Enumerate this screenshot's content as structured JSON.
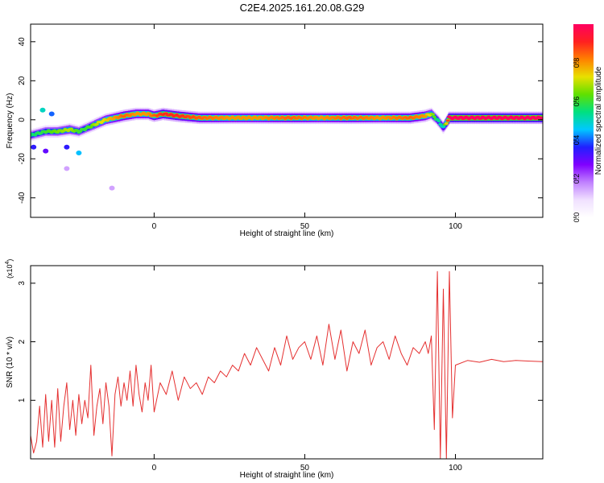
{
  "page": {
    "title": "C2E4.2025.161.20.08.G29"
  },
  "colors": {
    "frame": "#000000",
    "snr_line": "#e53030",
    "colormap_stops": [
      "#ffffff",
      "#f0e0ff",
      "#c080ff",
      "#8000ff",
      "#2020ff",
      "#00c8ff",
      "#00e080",
      "#60e000",
      "#e8e000",
      "#ff8000",
      "#ff2020",
      "#ff0060"
    ]
  },
  "chart_data": [
    {
      "type": "heatmap",
      "title": "",
      "xlabel": "Height of straight line (km)",
      "ylabel": "Frequency (Hz)",
      "xlim": [
        -41,
        129
      ],
      "ylim": [
        -50,
        49
      ],
      "x_ticks": [
        0,
        50,
        100
      ],
      "y_ticks": [
        -40,
        -20,
        0,
        20,
        40
      ],
      "colorbar": {
        "label": "Normalized spectral amplitude",
        "range": [
          0,
          1
        ],
        "ticks": [
          {
            "value": 0.0,
            "label": "0.0"
          },
          {
            "value": 0.2,
            "label": "0.2"
          },
          {
            "value": 0.4,
            "label": "0.4"
          },
          {
            "value": 0.6,
            "label": "0.6"
          },
          {
            "value": 0.8,
            "label": "0.8"
          }
        ]
      },
      "ridge": {
        "x": [
          -41,
          -36,
          -32,
          -28,
          -25,
          -22,
          -19,
          -16,
          -13,
          -10,
          -6,
          -2,
          0,
          3,
          8,
          15,
          25,
          35,
          45,
          55,
          65,
          75,
          85,
          90,
          92,
          94,
          96,
          98,
          105,
          115,
          129
        ],
        "freq": [
          -8,
          -6,
          -6,
          -5,
          -6,
          -4,
          -2,
          0,
          1,
          2,
          3,
          3,
          2,
          3,
          2,
          1,
          1,
          1,
          1,
          1,
          1,
          1,
          1,
          2,
          3,
          0,
          -4,
          1,
          1,
          1,
          1
        ],
        "amplitude": [
          0.55,
          0.6,
          0.65,
          0.7,
          0.6,
          0.6,
          0.7,
          0.75,
          0.8,
          0.85,
          0.8,
          0.8,
          0.85,
          0.9,
          0.9,
          0.85,
          0.8,
          0.8,
          0.85,
          0.8,
          0.85,
          0.8,
          0.85,
          0.8,
          0.7,
          0.55,
          0.5,
          1.0,
          1.0,
          1.0,
          1.0
        ]
      },
      "outliers": [
        {
          "x": -37,
          "freq": 5,
          "amplitude": 0.5
        },
        {
          "x": -34,
          "freq": 3,
          "amplitude": 0.4
        },
        {
          "x": -40,
          "freq": -14,
          "amplitude": 0.35
        },
        {
          "x": -36,
          "freq": -16,
          "amplitude": 0.3
        },
        {
          "x": -29,
          "freq": -14,
          "amplitude": 0.35
        },
        {
          "x": -25,
          "freq": -17,
          "amplitude": 0.45
        },
        {
          "x": -29,
          "freq": -25,
          "amplitude": 0.15
        },
        {
          "x": -14,
          "freq": -35,
          "amplitude": 0.15
        }
      ]
    },
    {
      "type": "line",
      "title": "",
      "xlabel": "Height of straight line (km)",
      "ylabel": "SNR (10 * v/v)",
      "multiplier": "(x10",
      "multiplier_exp": "4",
      "xlim": [
        -41,
        129
      ],
      "ylim": [
        0,
        3.3
      ],
      "x_ticks": [
        0,
        50,
        100
      ],
      "y_ticks": [
        1,
        2,
        3
      ],
      "series": [
        {
          "x": [
            -41,
            -40,
            -39,
            -38,
            -37,
            -36,
            -35,
            -34,
            -33,
            -32,
            -31,
            -30,
            -29,
            -28,
            -27,
            -26,
            -25,
            -24,
            -23,
            -22,
            -21,
            -20,
            -19,
            -18,
            -17,
            -16,
            -15,
            -14,
            -13,
            -12,
            -11,
            -10,
            -9,
            -8,
            -7,
            -6,
            -5,
            -4,
            -3,
            -2,
            -1,
            0,
            2,
            4,
            6,
            8,
            10,
            12,
            14,
            16,
            18,
            20,
            22,
            24,
            26,
            28,
            30,
            32,
            34,
            36,
            38,
            40,
            42,
            44,
            46,
            48,
            50,
            52,
            54,
            56,
            58,
            60,
            62,
            64,
            66,
            68,
            70,
            72,
            74,
            76,
            78,
            80,
            82,
            84,
            86,
            88,
            90,
            91,
            92,
            93,
            94,
            95,
            96,
            97,
            98,
            99,
            100,
            104,
            108,
            112,
            116,
            120,
            124,
            129
          ],
          "values": [
            0.4,
            0.1,
            0.3,
            0.9,
            0.2,
            1.1,
            0.3,
            1.0,
            0.2,
            1.2,
            0.3,
            0.9,
            1.3,
            0.5,
            1.0,
            0.4,
            1.1,
            0.6,
            1.0,
            0.7,
            1.6,
            0.4,
            0.9,
            1.2,
            0.6,
            1.3,
            0.9,
            0.05,
            1.1,
            1.4,
            0.9,
            1.3,
            1.0,
            1.5,
            0.9,
            1.6,
            1.1,
            0.8,
            1.3,
            1.0,
            1.6,
            0.8,
            1.3,
            1.1,
            1.5,
            1.0,
            1.4,
            1.2,
            1.3,
            1.1,
            1.4,
            1.3,
            1.5,
            1.4,
            1.6,
            1.5,
            1.8,
            1.6,
            1.9,
            1.7,
            1.5,
            1.9,
            1.6,
            2.1,
            1.7,
            1.9,
            2.0,
            1.7,
            2.1,
            1.6,
            2.3,
            1.7,
            2.2,
            1.5,
            2.0,
            1.8,
            2.2,
            1.6,
            1.9,
            2.0,
            1.7,
            2.1,
            1.8,
            1.6,
            1.9,
            1.8,
            2.0,
            1.8,
            2.1,
            0.5,
            3.2,
            0.0,
            2.9,
            0.0,
            3.2,
            0.7,
            1.6,
            1.68,
            1.65,
            1.7,
            1.66,
            1.68,
            1.67,
            1.66
          ]
        }
      ]
    }
  ]
}
